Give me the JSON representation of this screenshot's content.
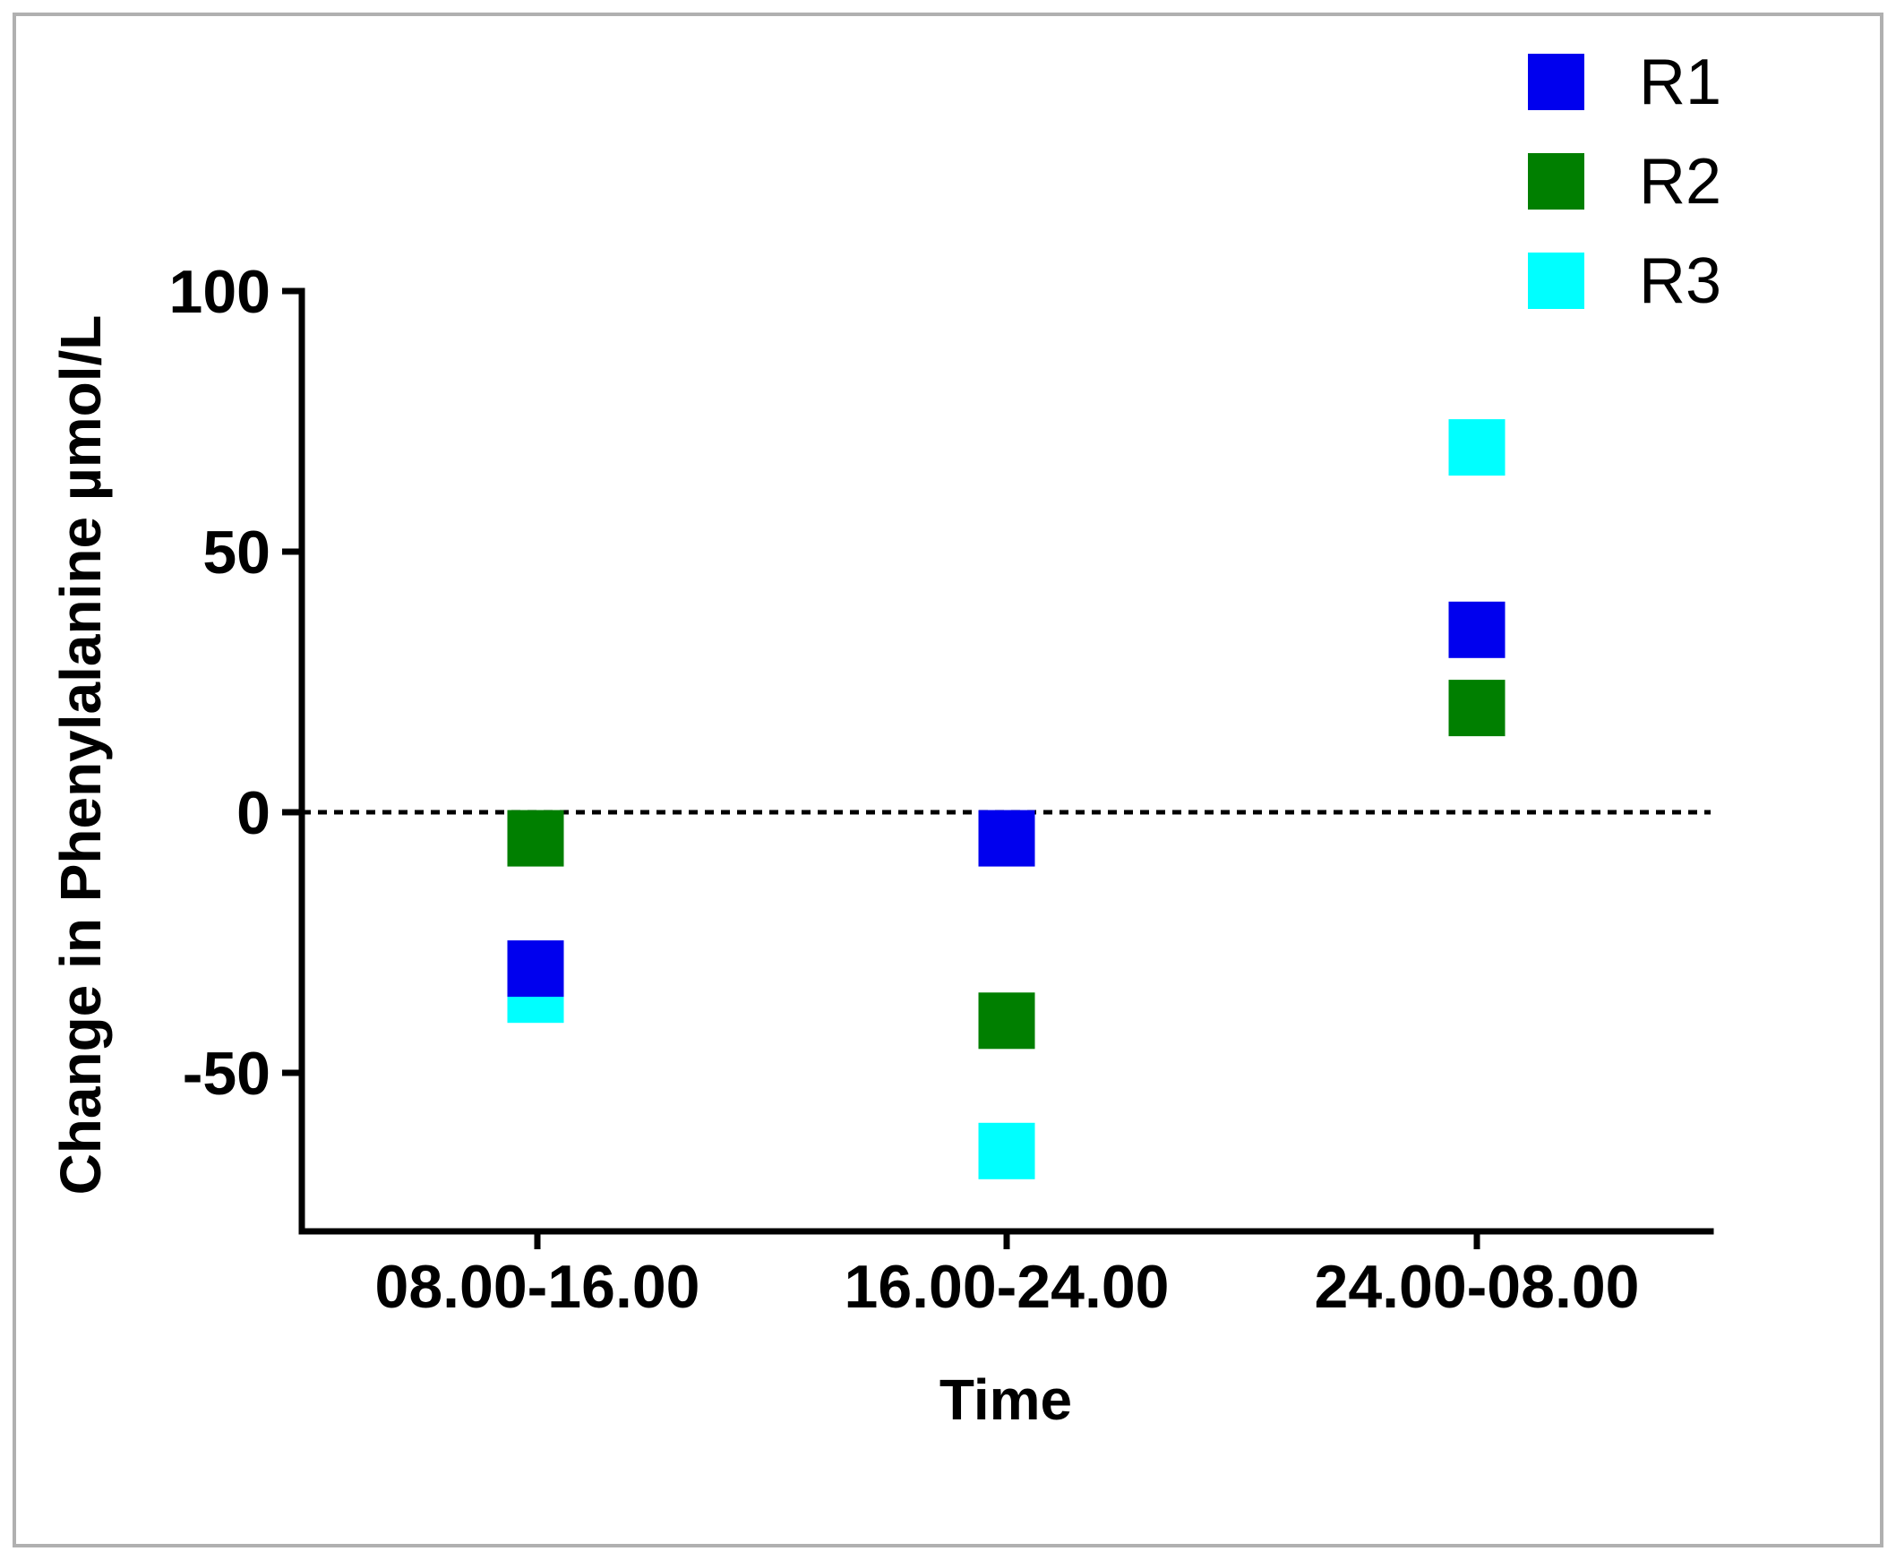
{
  "chart_data": {
    "type": "scatter",
    "xlabel": "Time",
    "ylabel": "Change in Phenylalanine µmol/L",
    "categories": [
      "08.00-16.00",
      "16.00-24.00",
      "24.00-08.00"
    ],
    "ylim": [
      -80,
      100
    ],
    "yticks": [
      -50,
      0,
      50,
      100
    ],
    "reference_line": {
      "y": 0,
      "style": "dotted"
    },
    "grid": false,
    "legend_position": "top-right",
    "series": [
      {
        "name": "R1",
        "color": "#0000ee",
        "values": [
          -30,
          -5,
          35
        ]
      },
      {
        "name": "R2",
        "color": "#007f00",
        "values": [
          -5,
          -40,
          20
        ]
      },
      {
        "name": "R3",
        "color": "#00ffff",
        "values": [
          -35,
          -65,
          70
        ]
      }
    ]
  }
}
